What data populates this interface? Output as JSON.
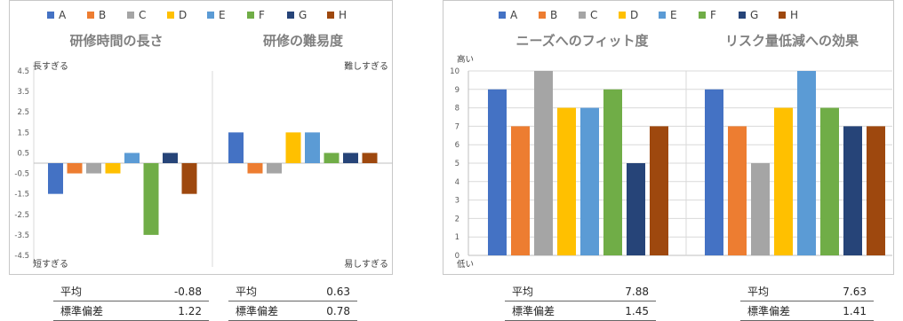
{
  "chart_data": [
    {
      "type": "bar",
      "categories": [
        "A",
        "B",
        "C",
        "D",
        "E",
        "F",
        "G",
        "H"
      ],
      "colors": [
        "#4472c4",
        "#ed7d31",
        "#a5a5a5",
        "#ffc000",
        "#5b9bd5",
        "#70ad47",
        "#264478",
        "#9e480e"
      ],
      "ylim": [
        -4.5,
        4.5
      ],
      "yticks": [
        "4.5",
        "3.5",
        "2.5",
        "1.5",
        "0.5",
        "-0.5",
        "-1.5",
        "-2.5",
        "-3.5",
        "-4.5"
      ],
      "grid": false,
      "legend": "top",
      "panels": [
        {
          "title": "研修時間の長さ",
          "top_label": "長すぎる",
          "bottom_label": "短すぎる",
          "values": [
            -1.5,
            -0.5,
            -0.5,
            -0.5,
            0.5,
            -3.5,
            0.5,
            -1.5
          ],
          "stats": {
            "mean_label": "平均",
            "mean": "-0.88",
            "sd_label": "標準偏差",
            "sd": "1.22"
          }
        },
        {
          "title": "研修の難易度",
          "top_label": "難しすぎる",
          "bottom_label": "易しすぎる",
          "values": [
            1.5,
            -0.5,
            -0.5,
            1.5,
            1.5,
            0.5,
            0.5,
            0.5
          ],
          "stats": {
            "mean_label": "平均",
            "mean": "0.63",
            "sd_label": "標準偏差",
            "sd": "0.78"
          }
        }
      ]
    },
    {
      "type": "bar",
      "categories": [
        "A",
        "B",
        "C",
        "D",
        "E",
        "F",
        "G",
        "H"
      ],
      "colors": [
        "#4472c4",
        "#ed7d31",
        "#a5a5a5",
        "#ffc000",
        "#5b9bd5",
        "#70ad47",
        "#264478",
        "#9e480e"
      ],
      "ylim": [
        0,
        10
      ],
      "yticks": [
        "10",
        "9",
        "8",
        "7",
        "6",
        "5",
        "4",
        "3",
        "2",
        "1",
        "0"
      ],
      "grid": true,
      "legend": "top",
      "y_top_label": "高い",
      "y_bottom_label": "低い",
      "panels": [
        {
          "title": "ニーズへのフィット度",
          "values": [
            9,
            7,
            10,
            8,
            8,
            9,
            5,
            7
          ],
          "stats": {
            "mean_label": "平均",
            "mean": "7.88",
            "sd_label": "標準偏差",
            "sd": "1.45"
          }
        },
        {
          "title": "リスク量低減への効果",
          "values": [
            9,
            7,
            5,
            8,
            10,
            8,
            7,
            7
          ],
          "stats": {
            "mean_label": "平均",
            "mean": "7.63",
            "sd_label": "標準偏差",
            "sd": "1.41"
          }
        }
      ]
    }
  ]
}
